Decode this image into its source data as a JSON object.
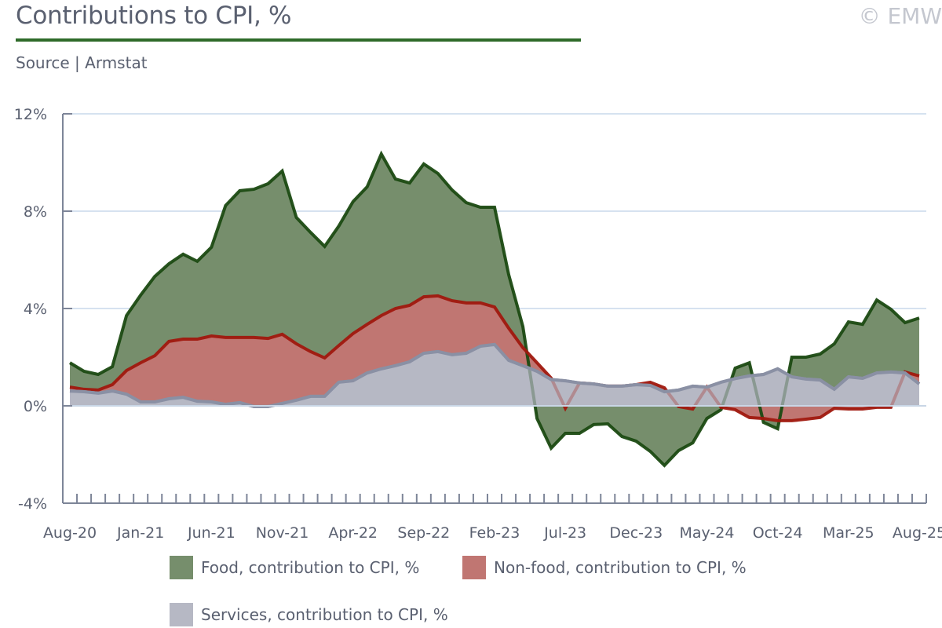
{
  "header": {
    "title": "Contributions to CPI, %",
    "subtitle": "Source | Armstat",
    "watermark": "© EMW"
  },
  "colors": {
    "food_fill": "#768e6c",
    "food_line": "#1b4a12",
    "nonfood_fill": "#c07672",
    "nonfood_line": "#a0180e",
    "services_fill": "#b6b8c4",
    "services_line": "#8a90a4",
    "axis": "#7d8598",
    "grid": "#d6e2f0",
    "title_rule": "#2f6b2a"
  },
  "chart_data": {
    "type": "area",
    "title": "Contributions to CPI, %",
    "subtitle": "Source | Armstat",
    "xlabel": "",
    "ylabel": "",
    "ylim": [
      -4,
      12
    ],
    "yticks": [
      -4,
      0,
      4,
      8,
      12
    ],
    "ytick_labels": [
      "-4%",
      "0%",
      "4%",
      "8%",
      "12%"
    ],
    "grid": true,
    "legend_position": "bottom",
    "x": [
      "Aug-20",
      "Sep-20",
      "Oct-20",
      "Nov-20",
      "Dec-20",
      "Jan-21",
      "Feb-21",
      "Mar-21",
      "Apr-21",
      "May-21",
      "Jun-21",
      "Jul-21",
      "Aug-21",
      "Sep-21",
      "Oct-21",
      "Nov-21",
      "Dec-21",
      "Jan-22",
      "Feb-22",
      "Mar-22",
      "Apr-22",
      "May-22",
      "Jun-22",
      "Jul-22",
      "Aug-22",
      "Sep-22",
      "Oct-22",
      "Nov-22",
      "Dec-22",
      "Jan-23",
      "Feb-23",
      "Mar-23",
      "Apr-23",
      "May-23",
      "Jun-23",
      "Jul-23",
      "Aug-23",
      "Sep-23",
      "Oct-23",
      "Nov-23",
      "Dec-23",
      "Jan-24",
      "Feb-24",
      "Mar-24",
      "Apr-24",
      "May-24",
      "Jun-24",
      "Jul-24",
      "Aug-24",
      "Sep-24",
      "Oct-24",
      "Nov-24",
      "Dec-24",
      "Jan-25",
      "Feb-25",
      "Mar-25",
      "Apr-25",
      "May-25",
      "Jun-25",
      "Jul-25",
      "Aug-25"
    ],
    "xtick_labels": [
      "Aug-20",
      "Jan-21",
      "Jun-21",
      "Nov-21",
      "Apr-22",
      "Sep-22",
      "Feb-23",
      "Jul-23",
      "Dec-23",
      "May-24",
      "Oct-24",
      "Mar-25",
      "Aug-25"
    ],
    "series": [
      {
        "name": "Food, contribution to CPI, %",
        "values": [
          1.77,
          1.42,
          1.29,
          1.61,
          3.71,
          4.55,
          5.32,
          5.84,
          6.23,
          5.94,
          6.52,
          8.23,
          8.84,
          8.9,
          9.13,
          9.65,
          7.74,
          7.13,
          6.55,
          7.39,
          8.39,
          9.0,
          10.35,
          9.32,
          9.16,
          9.94,
          9.55,
          8.87,
          8.35,
          8.16,
          8.16,
          5.39,
          3.26,
          -0.52,
          -1.74,
          -1.13,
          -1.13,
          -0.77,
          -0.74,
          -1.26,
          -1.45,
          -1.87,
          -2.45,
          -1.84,
          -1.52,
          -0.52,
          -0.16,
          1.55,
          1.77,
          -0.68,
          -0.94,
          2.0,
          2.0,
          2.13,
          2.55,
          3.45,
          3.35,
          4.35,
          3.97,
          3.42,
          3.61
        ]
      },
      {
        "name": "Non-food, contribution to CPI, %",
        "values": [
          0.77,
          0.68,
          0.65,
          0.87,
          1.45,
          1.77,
          2.06,
          2.65,
          2.74,
          2.74,
          2.87,
          2.81,
          2.81,
          2.81,
          2.77,
          2.94,
          2.55,
          2.23,
          1.97,
          2.48,
          2.97,
          3.35,
          3.71,
          4.0,
          4.13,
          4.48,
          4.52,
          4.32,
          4.23,
          4.23,
          4.06,
          3.19,
          2.39,
          1.77,
          1.14,
          -0.1,
          0.94,
          0.9,
          0.81,
          0.81,
          0.87,
          0.97,
          0.74,
          -0.03,
          -0.13,
          0.77,
          -0.06,
          -0.16,
          -0.48,
          -0.52,
          -0.61,
          -0.61,
          -0.55,
          -0.48,
          -0.1,
          -0.13,
          -0.13,
          -0.06,
          -0.06,
          1.39,
          1.23
        ]
      },
      {
        "name": "Services, contribution to CPI, %",
        "values": [
          0.61,
          0.58,
          0.52,
          0.61,
          0.48,
          0.16,
          0.16,
          0.29,
          0.35,
          0.19,
          0.16,
          0.06,
          0.13,
          -0.03,
          -0.03,
          0.1,
          0.23,
          0.39,
          0.39,
          0.97,
          1.03,
          1.35,
          1.52,
          1.65,
          1.81,
          2.16,
          2.23,
          2.1,
          2.16,
          2.45,
          2.52,
          1.87,
          1.65,
          1.42,
          1.08,
          1.03,
          0.94,
          0.9,
          0.81,
          0.81,
          0.87,
          0.84,
          0.58,
          0.65,
          0.81,
          0.77,
          0.97,
          1.12,
          1.23,
          1.29,
          1.52,
          1.19,
          1.1,
          1.06,
          0.68,
          1.19,
          1.13,
          1.35,
          1.39,
          1.35,
          0.9
        ]
      }
    ]
  },
  "legend": {
    "items": [
      {
        "label": "Food, contribution to CPI, %"
      },
      {
        "label": "Non-food, contribution to CPI, %"
      },
      {
        "label": "Services, contribution to CPI, %"
      }
    ]
  }
}
